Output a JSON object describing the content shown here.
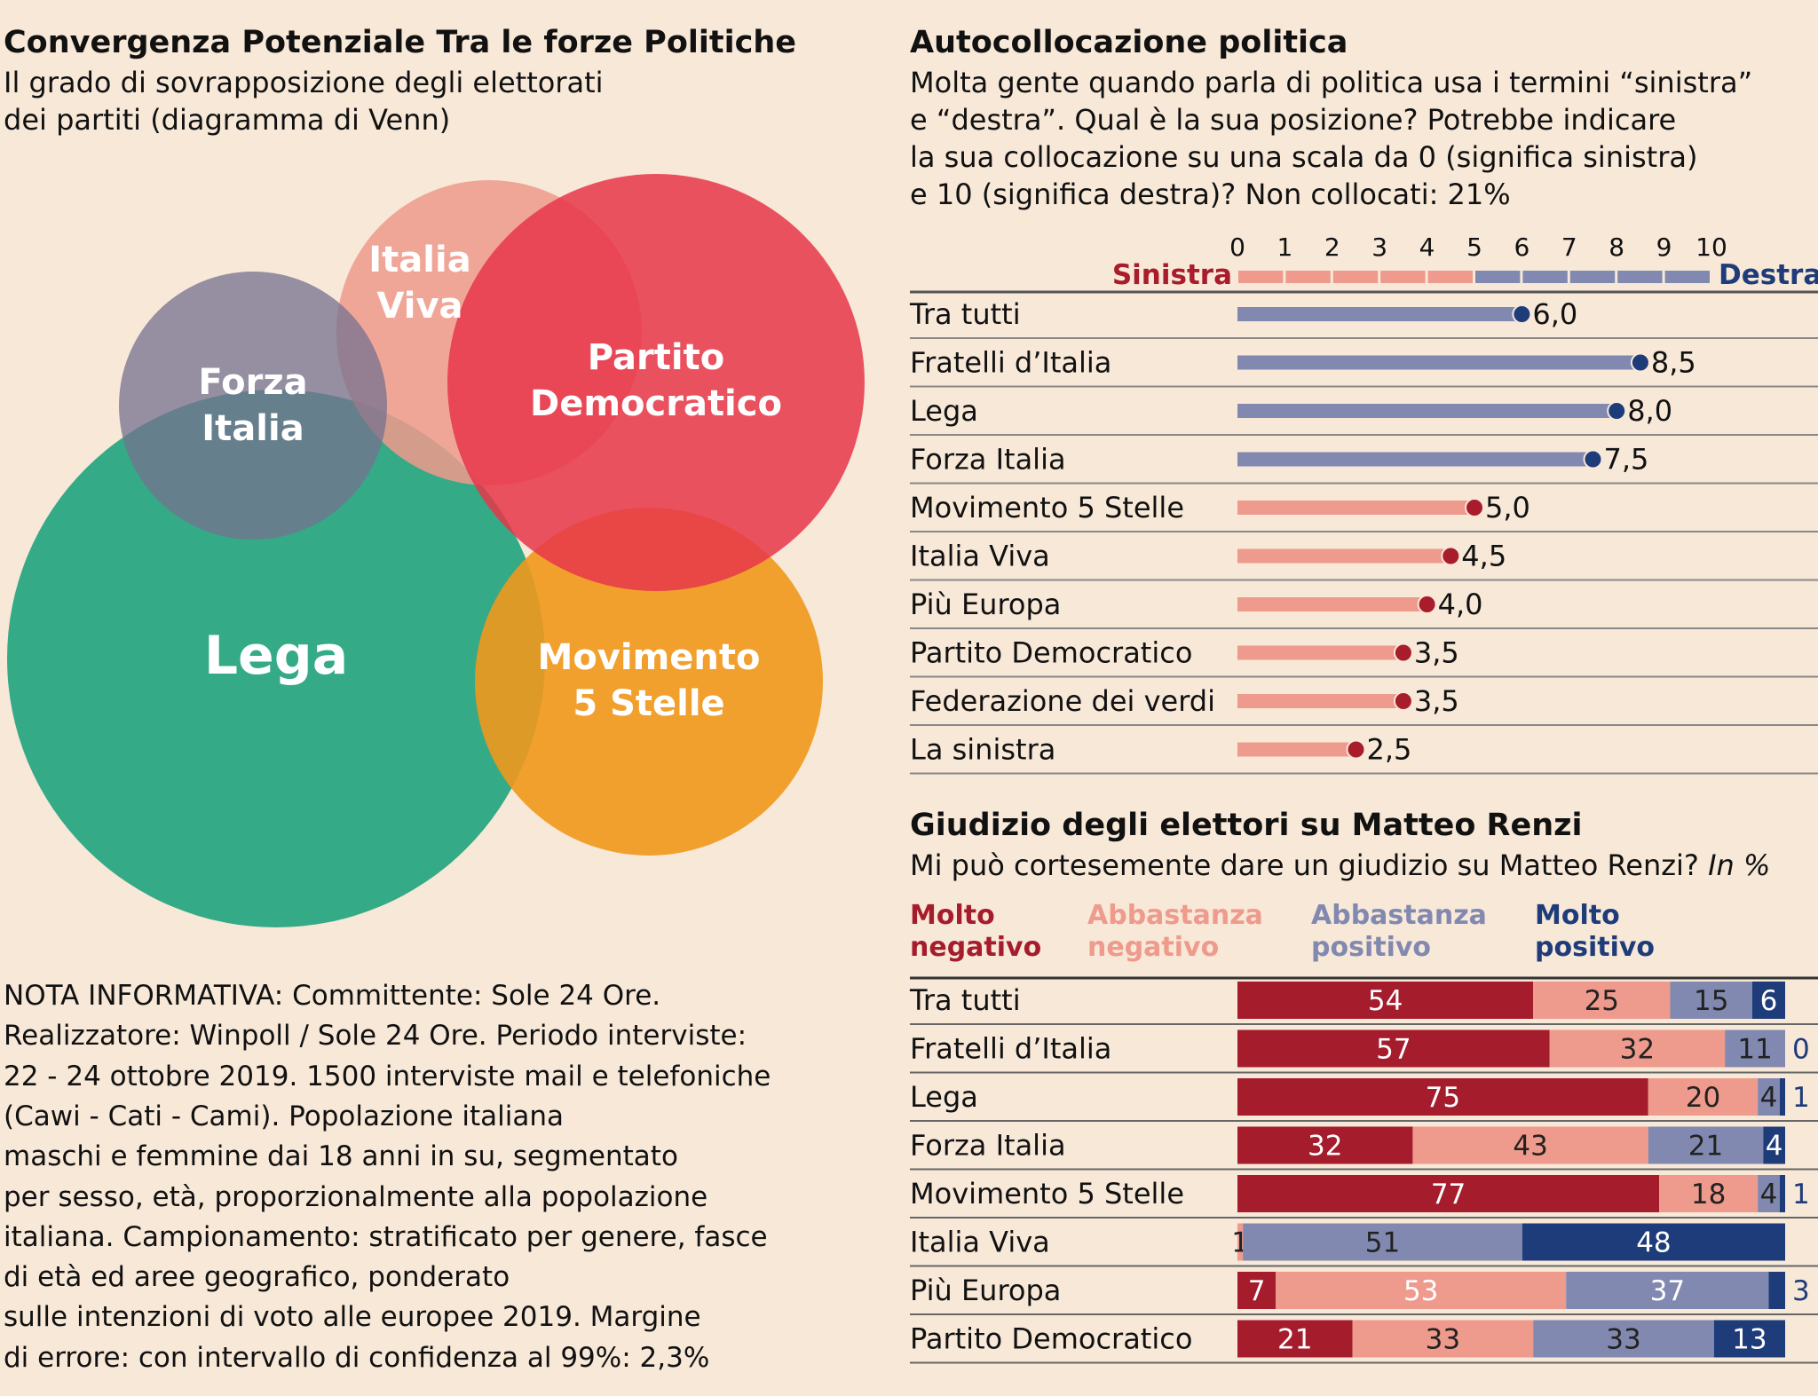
{
  "venn": {
    "title": "Convergenza Potenziale Tra le forze Politiche",
    "subtitle": [
      "Il grado di sovrapposizione degli elettorati",
      "dei partiti (diagramma di Venn)"
    ],
    "sets": [
      {
        "name_lines": [
          "Lega"
        ],
        "color": "#2aa783"
      },
      {
        "name_lines": [
          "Movimento",
          "5 Stelle"
        ],
        "color": "#f0981c"
      },
      {
        "name_lines": [
          "Italia",
          "Viva"
        ],
        "color": "#ee9a8c"
      },
      {
        "name_lines": [
          "Partito",
          "Democratico"
        ],
        "color": "#e8364a"
      },
      {
        "name_lines": [
          "Forza",
          "Italia"
        ],
        "color": "#76708f"
      }
    ]
  },
  "nota": [
    "NOTA INFORMATIVA: Committente: Sole 24 Ore.",
    "Realizzatore: Winpoll / Sole 24 Ore. Periodo interviste:",
    "22 - 24 ottobre 2019. 1500 interviste mail e telefoniche",
    "(Cawi - Cati - Cami). Popolazione italiana",
    "maschi e femmine dai 18 anni in su, segmentato",
    "per sesso, età, proporzionalmente alla popolazione",
    "italiana. Campionamento: stratificato per genere, fasce",
    "di età ed aree geografico, ponderato",
    "sulle intenzioni di voto alle europee 2019. Margine",
    "di errore: con intervallo di confidenza al 99%: 2,3%"
  ],
  "chart_data": [
    {
      "type": "bar",
      "title": "Autocollocazione politica",
      "subtitle": [
        "Molta gente quando parla di politica usa i termini “sinistra”",
        "e “destra”. Qual è la sua posizione? Potrebbe indicare",
        "la sua collocazione su una scala da 0 (significa sinistra)",
        "e 10 (significa destra)? Non collocati: 21%"
      ],
      "left_label": "Sinistra",
      "right_label": "Destra",
      "xlim": [
        0,
        10
      ],
      "ticks": [
        "0",
        "1",
        "2",
        "3",
        "4",
        "5",
        "6",
        "7",
        "8",
        "9",
        "10"
      ],
      "categories": [
        "Tra tutti",
        "Fratelli d’Italia",
        "Lega",
        "Forza Italia",
        "Movimento 5 Stelle",
        "Italia Viva",
        "Più Europa",
        "Partito Democratico",
        "Federazione dei verdi",
        "La sinistra"
      ],
      "values": [
        6.0,
        8.5,
        8.0,
        7.5,
        5.0,
        4.5,
        4.0,
        3.5,
        3.5,
        2.5
      ],
      "value_labels": [
        "6,0",
        "8,5",
        "8,0",
        "7,5",
        "5,0",
        "4,5",
        "4,0",
        "3,5",
        "3,5",
        "2,5"
      ],
      "colors": {
        "left_bar": "#ee9a8c",
        "left_dot": "#a81c2c",
        "right_bar": "#8289b0",
        "right_dot": "#1e3c7a",
        "sinistra": "#a81c2c",
        "destra": "#1e3c7a"
      }
    },
    {
      "type": "bar",
      "stacked": true,
      "title": "Giudizio degli elettori su Matteo Renzi",
      "subtitle": "Mi può cortesemente dare un giudizio su Matteo Renzi?",
      "unit": "In %",
      "categories": [
        "Tra tutti",
        "Fratelli d’Italia",
        "Lega",
        "Forza Italia",
        "Movimento 5 Stelle",
        "Italia Viva",
        "Più Europa",
        "Partito Democratico"
      ],
      "series": [
        {
          "name": "Molto negativo",
          "name_lines": [
            "Molto",
            "negativo"
          ],
          "color": "#a51c2d",
          "values": [
            54,
            57,
            75,
            32,
            77,
            0,
            7,
            21
          ]
        },
        {
          "name": "Abbastanza negativo",
          "name_lines": [
            "Abbastanza",
            "negativo"
          ],
          "color": "#ee9a8c",
          "values": [
            25,
            32,
            20,
            43,
            18,
            1,
            53,
            33
          ]
        },
        {
          "name": "Abbastanza positivo",
          "name_lines": [
            "Abbastanza",
            "positivo"
          ],
          "color": "#8289b0",
          "values": [
            15,
            11,
            4,
            21,
            4,
            51,
            37,
            33
          ]
        },
        {
          "name": "Molto positivo",
          "name_lines": [
            "Molto",
            "positivo"
          ],
          "color": "#1e3c7a",
          "values": [
            6,
            0,
            1,
            4,
            1,
            48,
            3,
            13
          ]
        }
      ]
    }
  ]
}
